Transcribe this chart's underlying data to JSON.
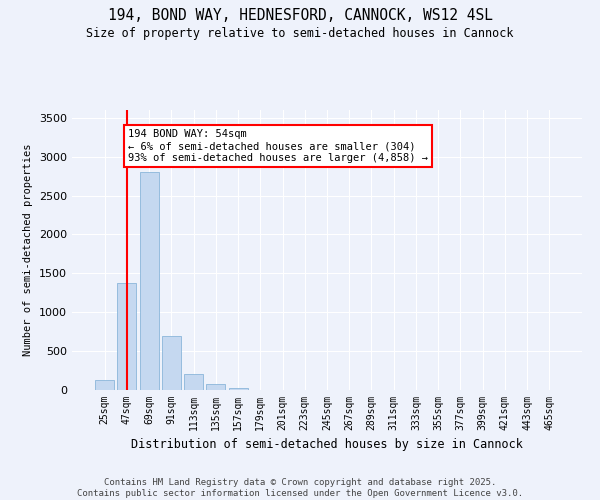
{
  "title1": "194, BOND WAY, HEDNESFORD, CANNOCK, WS12 4SL",
  "title2": "Size of property relative to semi-detached houses in Cannock",
  "xlabel": "Distribution of semi-detached houses by size in Cannock",
  "ylabel": "Number of semi-detached properties",
  "annotation_title": "194 BOND WAY: 54sqm",
  "annotation_line1": "← 6% of semi-detached houses are smaller (304)",
  "annotation_line2": "93% of semi-detached houses are larger (4,858) →",
  "footer1": "Contains HM Land Registry data © Crown copyright and database right 2025.",
  "footer2": "Contains public sector information licensed under the Open Government Licence v3.0.",
  "categories": [
    "25sqm",
    "47sqm",
    "69sqm",
    "91sqm",
    "113sqm",
    "135sqm",
    "157sqm",
    "179sqm",
    "201sqm",
    "223sqm",
    "245sqm",
    "267sqm",
    "289sqm",
    "311sqm",
    "333sqm",
    "355sqm",
    "377sqm",
    "399sqm",
    "421sqm",
    "443sqm",
    "465sqm"
  ],
  "values": [
    130,
    1380,
    2800,
    700,
    200,
    80,
    25,
    5,
    0,
    0,
    0,
    0,
    0,
    0,
    0,
    5,
    0,
    0,
    0,
    0,
    0
  ],
  "bar_color": "#c5d8f0",
  "bar_edgecolor": "#7bacd4",
  "vline_x_index": 1,
  "vline_color": "red",
  "annotation_box_color": "red",
  "ylim": [
    0,
    3600
  ],
  "yticks": [
    0,
    500,
    1000,
    1500,
    2000,
    2500,
    3000,
    3500
  ],
  "bg_color": "#eef2fb",
  "grid_color": "white"
}
